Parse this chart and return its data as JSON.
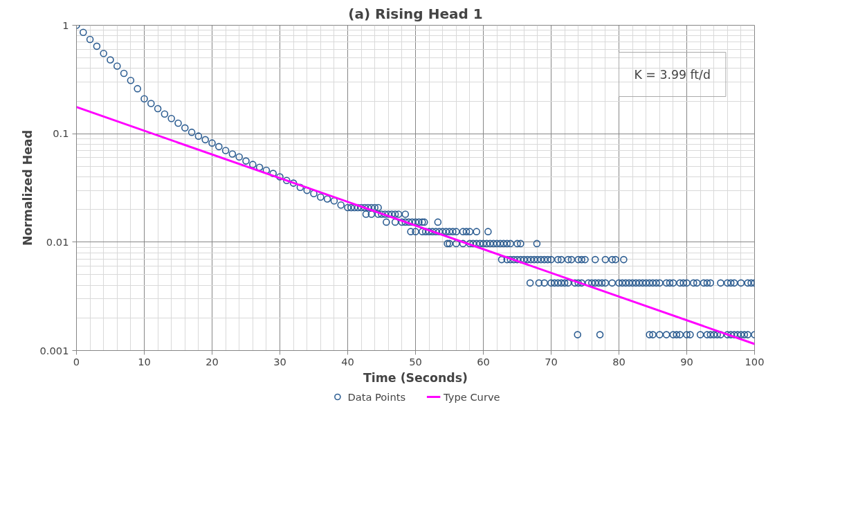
{
  "chart_data": {
    "type": "scatter",
    "title": "(a) Rising Head 1",
    "xlabel": "Time (Seconds)",
    "ylabel": "Normalized Head",
    "log": "y",
    "grid": true,
    "legend": "bottom",
    "xlim": [
      0,
      100
    ],
    "xticks": [
      0,
      10,
      20,
      30,
      40,
      50,
      60,
      70,
      80,
      90,
      100
    ],
    "ylim": [
      0.001,
      1
    ],
    "yticks": [
      0.001,
      0.01,
      0.1,
      1
    ],
    "annotations": [
      "K = 3.99 ft/d"
    ],
    "series": [
      {
        "name": "Data Points",
        "marker": "circle",
        "color": "#2f5f93",
        "x": [
          0,
          1,
          2,
          3,
          4,
          5,
          6,
          7,
          8,
          9,
          10,
          11,
          12,
          13,
          14,
          15,
          16,
          17,
          18,
          19,
          20,
          21,
          22,
          23,
          24,
          25,
          26,
          27,
          28,
          29,
          30,
          31,
          32,
          33,
          34,
          35,
          36,
          37,
          38,
          39,
          40,
          40.5,
          41,
          41.5,
          42,
          42.5,
          43,
          43.5,
          44,
          44.5,
          42.7,
          43.5,
          44.5,
          45,
          45.5,
          46,
          46.5,
          47,
          47.5,
          48.5,
          45.7,
          47,
          48,
          48.5,
          49,
          49.5,
          50,
          50.5,
          51,
          51.3,
          53.3,
          49.3,
          50,
          51,
          51.5,
          52,
          52.5,
          53,
          53.5,
          54,
          54.5,
          55,
          55.5,
          56,
          57,
          57.5,
          58,
          59,
          60.7,
          54.7,
          55,
          56,
          57,
          58,
          58.5,
          59,
          59.5,
          60,
          60.5,
          61,
          61.5,
          62,
          62.5,
          63,
          63.5,
          64,
          65,
          65.5,
          67.9,
          62.7,
          63.5,
          64,
          64.5,
          65,
          65.5,
          66,
          66.5,
          67,
          67.5,
          68,
          68.5,
          69,
          69.5,
          70,
          71,
          71.5,
          72.5,
          73,
          74,
          74.5,
          75,
          76.5,
          78,
          79,
          79.5,
          80.7,
          66.9,
          68.2,
          69,
          70,
          70.5,
          71,
          71.5,
          72,
          72.5,
          73.5,
          74,
          74.5,
          75.5,
          76,
          76.5,
          77,
          77.5,
          78,
          79,
          80,
          80.5,
          81,
          81.5,
          82,
          82.5,
          83,
          83.5,
          84,
          84.5,
          85,
          85.5,
          86,
          87,
          87.5,
          88,
          89,
          89.5,
          90,
          91,
          91.5,
          92.5,
          93,
          93.5,
          95,
          96,
          96.5,
          97,
          98,
          99,
          99.5,
          100,
          73.9,
          77.2,
          84.5,
          85,
          86,
          87,
          88,
          88.5,
          89,
          90,
          90.5,
          92,
          93,
          93.5,
          94,
          94.5,
          95,
          96,
          96.5,
          97,
          97.5,
          98,
          98.5,
          99,
          100
        ],
        "values": [
          1,
          0.86,
          0.74,
          0.64,
          0.55,
          0.48,
          0.42,
          0.36,
          0.31,
          0.26,
          0.21,
          0.19,
          0.17,
          0.152,
          0.138,
          0.125,
          0.113,
          0.103,
          0.095,
          0.088,
          0.082,
          0.076,
          0.07,
          0.065,
          0.061,
          0.056,
          0.052,
          0.049,
          0.046,
          0.043,
          0.04,
          0.037,
          0.035,
          0.032,
          0.03,
          0.028,
          0.026,
          0.025,
          0.024,
          0.022,
          0.0208,
          0.0208,
          0.0208,
          0.0208,
          0.0208,
          0.0208,
          0.0208,
          0.0208,
          0.0208,
          0.0208,
          0.0181,
          0.0181,
          0.0181,
          0.0181,
          0.0181,
          0.0181,
          0.0181,
          0.0181,
          0.0181,
          0.0181,
          0.0153,
          0.0153,
          0.0153,
          0.0153,
          0.0153,
          0.0153,
          0.0153,
          0.0153,
          0.0153,
          0.0153,
          0.0153,
          0.0125,
          0.0125,
          0.0125,
          0.0125,
          0.0125,
          0.0125,
          0.0125,
          0.0125,
          0.0125,
          0.0125,
          0.0125,
          0.0125,
          0.0125,
          0.0125,
          0.0125,
          0.0125,
          0.0125,
          0.0125,
          0.0097,
          0.0097,
          0.0097,
          0.0097,
          0.0097,
          0.0097,
          0.0097,
          0.0097,
          0.0097,
          0.0097,
          0.0097,
          0.0097,
          0.0097,
          0.0097,
          0.0097,
          0.0097,
          0.0097,
          0.0097,
          0.0097,
          0.0097,
          0.0069,
          0.0069,
          0.0069,
          0.0069,
          0.0069,
          0.0069,
          0.0069,
          0.0069,
          0.0069,
          0.0069,
          0.0069,
          0.0069,
          0.0069,
          0.0069,
          0.0069,
          0.0069,
          0.0069,
          0.0069,
          0.0069,
          0.0069,
          0.0069,
          0.0069,
          0.0069,
          0.0069,
          0.0069,
          0.0069,
          0.0069,
          0.0042,
          0.0042,
          0.0042,
          0.0042,
          0.0042,
          0.0042,
          0.0042,
          0.0042,
          0.0042,
          0.0042,
          0.0042,
          0.0042,
          0.0042,
          0.0042,
          0.0042,
          0.0042,
          0.0042,
          0.0042,
          0.0042,
          0.0042,
          0.0042,
          0.0042,
          0.0042,
          0.0042,
          0.0042,
          0.0042,
          0.0042,
          0.0042,
          0.0042,
          0.0042,
          0.0042,
          0.0042,
          0.0042,
          0.0042,
          0.0042,
          0.0042,
          0.0042,
          0.0042,
          0.0042,
          0.0042,
          0.0042,
          0.0042,
          0.0042,
          0.0042,
          0.0042,
          0.0042,
          0.0042,
          0.0042,
          0.0042,
          0.0042,
          0.0042,
          0.0014,
          0.0014,
          0.0014,
          0.0014,
          0.0014,
          0.0014,
          0.0014,
          0.0014,
          0.0014,
          0.0014,
          0.0014,
          0.0014,
          0.0014,
          0.0014,
          0.0014,
          0.0014,
          0.0014,
          0.0014,
          0.0014,
          0.0014,
          0.0014,
          0.0014,
          0.0014,
          0.0014,
          0.0014
        ]
      },
      {
        "name": "Type Curve",
        "type": "line",
        "color": "#ff00ff",
        "x": [
          0,
          100
        ],
        "values": [
          0.176,
          0.00115
        ]
      }
    ]
  }
}
